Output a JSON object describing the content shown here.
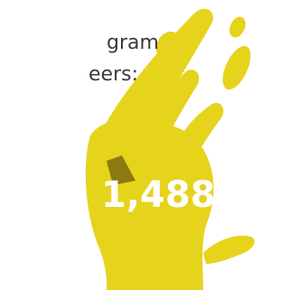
{
  "text": {
    "lines": [
      "gram",
      "eers:"
    ],
    "stat": "1,488"
  }
}
